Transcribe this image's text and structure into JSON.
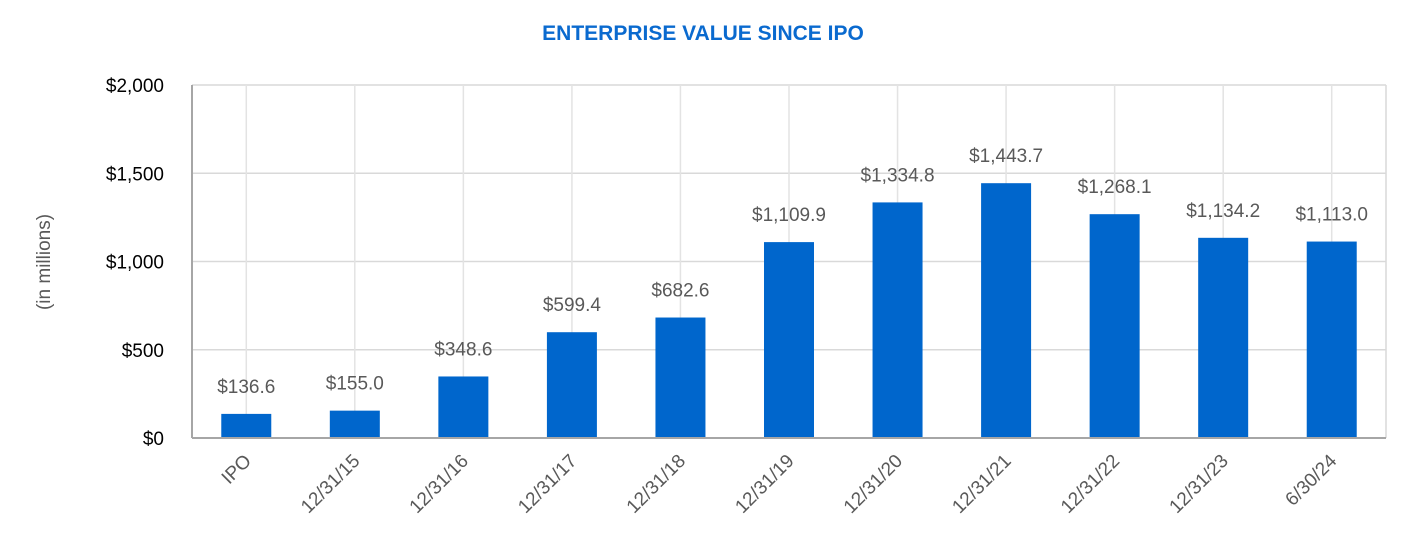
{
  "chart_data": {
    "type": "bar",
    "title": "ENTERPRISE VALUE SINCE IPO",
    "xlabel": "",
    "ylabel": "(in millions)",
    "ylim": [
      0,
      2000
    ],
    "yticks": [
      0,
      500,
      1000,
      1500,
      2000
    ],
    "ytick_labels": [
      "$0",
      "$500",
      "$1,000",
      "$1,500",
      "$2,000"
    ],
    "categories": [
      "IPO",
      "12/31/15",
      "12/31/16",
      "12/31/17",
      "12/31/18",
      "12/31/19",
      "12/31/20",
      "12/31/21",
      "12/31/22",
      "12/31/23",
      "6/30/24"
    ],
    "values": [
      136.6,
      155.0,
      348.6,
      599.4,
      682.6,
      1109.9,
      1334.8,
      1443.7,
      1268.1,
      1134.2,
      1113.0
    ],
    "data_labels": [
      "$136.6",
      "$155.0",
      "$348.6",
      "$599.4",
      "$682.6",
      "$1,109.9",
      "$1,334.8",
      "$1,443.7",
      "$1,268.1",
      "$1,134.2",
      "$1,113.0"
    ],
    "grid": true,
    "legend": "none",
    "colors": {
      "bar": "#0066CC",
      "title": "#0A6ACF"
    }
  }
}
